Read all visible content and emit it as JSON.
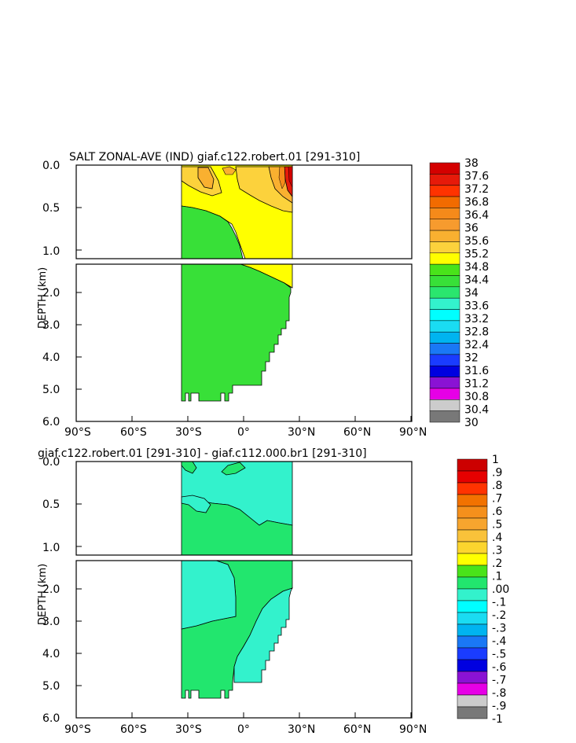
{
  "chart_data": [
    {
      "type": "contour",
      "title": "SALT ZONAL-AVE (IND) giaf.c122.robert.01 [291-310]",
      "ylabel": "DEPTH (km)",
      "x_ticks": [
        "90°S",
        "60°S",
        "30°S",
        "0°",
        "30°N",
        "60°N",
        "90°N"
      ],
      "x_values": [
        -90,
        -60,
        -30,
        0,
        30,
        60,
        90
      ],
      "x_range": [
        -90,
        90
      ],
      "y_upper_ticks": [
        "0.0",
        "0.5",
        "1.0"
      ],
      "y_upper_values": [
        0,
        0.5,
        1.0
      ],
      "y_upper_range": [
        0,
        1.1
      ],
      "y_lower_ticks": [
        "2.0",
        "3.0",
        "4.0",
        "5.0",
        "6.0"
      ],
      "y_lower_values": [
        2,
        3,
        4,
        5,
        6
      ],
      "y_lower_range": [
        1.1,
        6.0
      ],
      "colorbar_levels": [
        "38",
        "37.6",
        "37.2",
        "36.8",
        "36.4",
        "36",
        "35.6",
        "35.2",
        "34.8",
        "34.4",
        "34",
        "33.6",
        "33.2",
        "32.8",
        "32.4",
        "32",
        "31.6",
        "31.2",
        "30.8",
        "30.4",
        "30"
      ],
      "colorbar_colors": [
        "#d40000",
        "#e61a0a",
        "#ff3300",
        "#f26b00",
        "#f58a1a",
        "#f79b2e",
        "#f9b030",
        "#fcd23c",
        "#ffff00",
        "#49e31a",
        "#38e038",
        "#2ae66e",
        "#33f2cc",
        "#00ffff",
        "#1adcf2",
        "#00b4f0",
        "#1a78f5",
        "#1a3cff",
        "#0000e0",
        "#8a12d4",
        "#e600e6",
        "#cccccc",
        "#787878"
      ],
      "regions": [
        {
          "name": "yellow 35.2-34.8 upper layer",
          "range": [
            35.2,
            34.8
          ]
        },
        {
          "name": "light orange 35.6-35.2",
          "range": [
            35.6,
            35.2
          ]
        },
        {
          "name": "red high salinity core",
          "range": [
            38,
            37.2
          ]
        },
        {
          "name": "green 34.4-34.8 deep water",
          "range": [
            34.4,
            34.8
          ]
        }
      ]
    },
    {
      "type": "contour",
      "title": "giaf.c122.robert.01 [291-310] - giaf.c112.000.br1 [291-310]",
      "ylabel": "DEPTH (km)",
      "x_ticks": [
        "90°S",
        "60°S",
        "30°S",
        "0°",
        "30°N",
        "60°N",
        "90°N"
      ],
      "x_values": [
        -90,
        -60,
        -30,
        0,
        30,
        60,
        90
      ],
      "x_range": [
        -90,
        90
      ],
      "y_upper_ticks": [
        "0.0",
        "0.5",
        "1.0"
      ],
      "y_upper_values": [
        0,
        0.5,
        1.0
      ],
      "y_upper_range": [
        0,
        1.1
      ],
      "y_lower_ticks": [
        "2.0",
        "3.0",
        "4.0",
        "5.0",
        "6.0"
      ],
      "y_lower_values": [
        2,
        3,
        4,
        5,
        6
      ],
      "y_lower_range": [
        1.1,
        6.0
      ],
      "colorbar_levels": [
        "1",
        ".9",
        ".8",
        ".7",
        ".6",
        ".5",
        ".4",
        ".3",
        ".2",
        ".1",
        ".00",
        "-.1",
        "-.2",
        "-.3",
        "-.4",
        "-.5",
        "-.6",
        "-.7",
        "-.8",
        "-.9",
        "-1"
      ],
      "colorbar_colors": [
        "#cc0000",
        "#e60000",
        "#ff3300",
        "#f27200",
        "#f5901c",
        "#f7a52e",
        "#f9c23a",
        "#fcd52e",
        "#ffff00",
        "#49e31a",
        "#22e66e",
        "#33f2cc",
        "#00ffff",
        "#1adcf2",
        "#00b4f0",
        "#1a78f5",
        "#1a3cff",
        "#0000e0",
        "#8a12d4",
        "#e600e6",
        "#cccccc",
        "#787878"
      ],
      "regions": [
        {
          "name": "cyan -0.1-0.0 anomaly",
          "range": [
            -0.1,
            0.0
          ]
        },
        {
          "name": "green 0.0-0.1 anomaly",
          "range": [
            0.0,
            0.1
          ]
        }
      ]
    }
  ]
}
